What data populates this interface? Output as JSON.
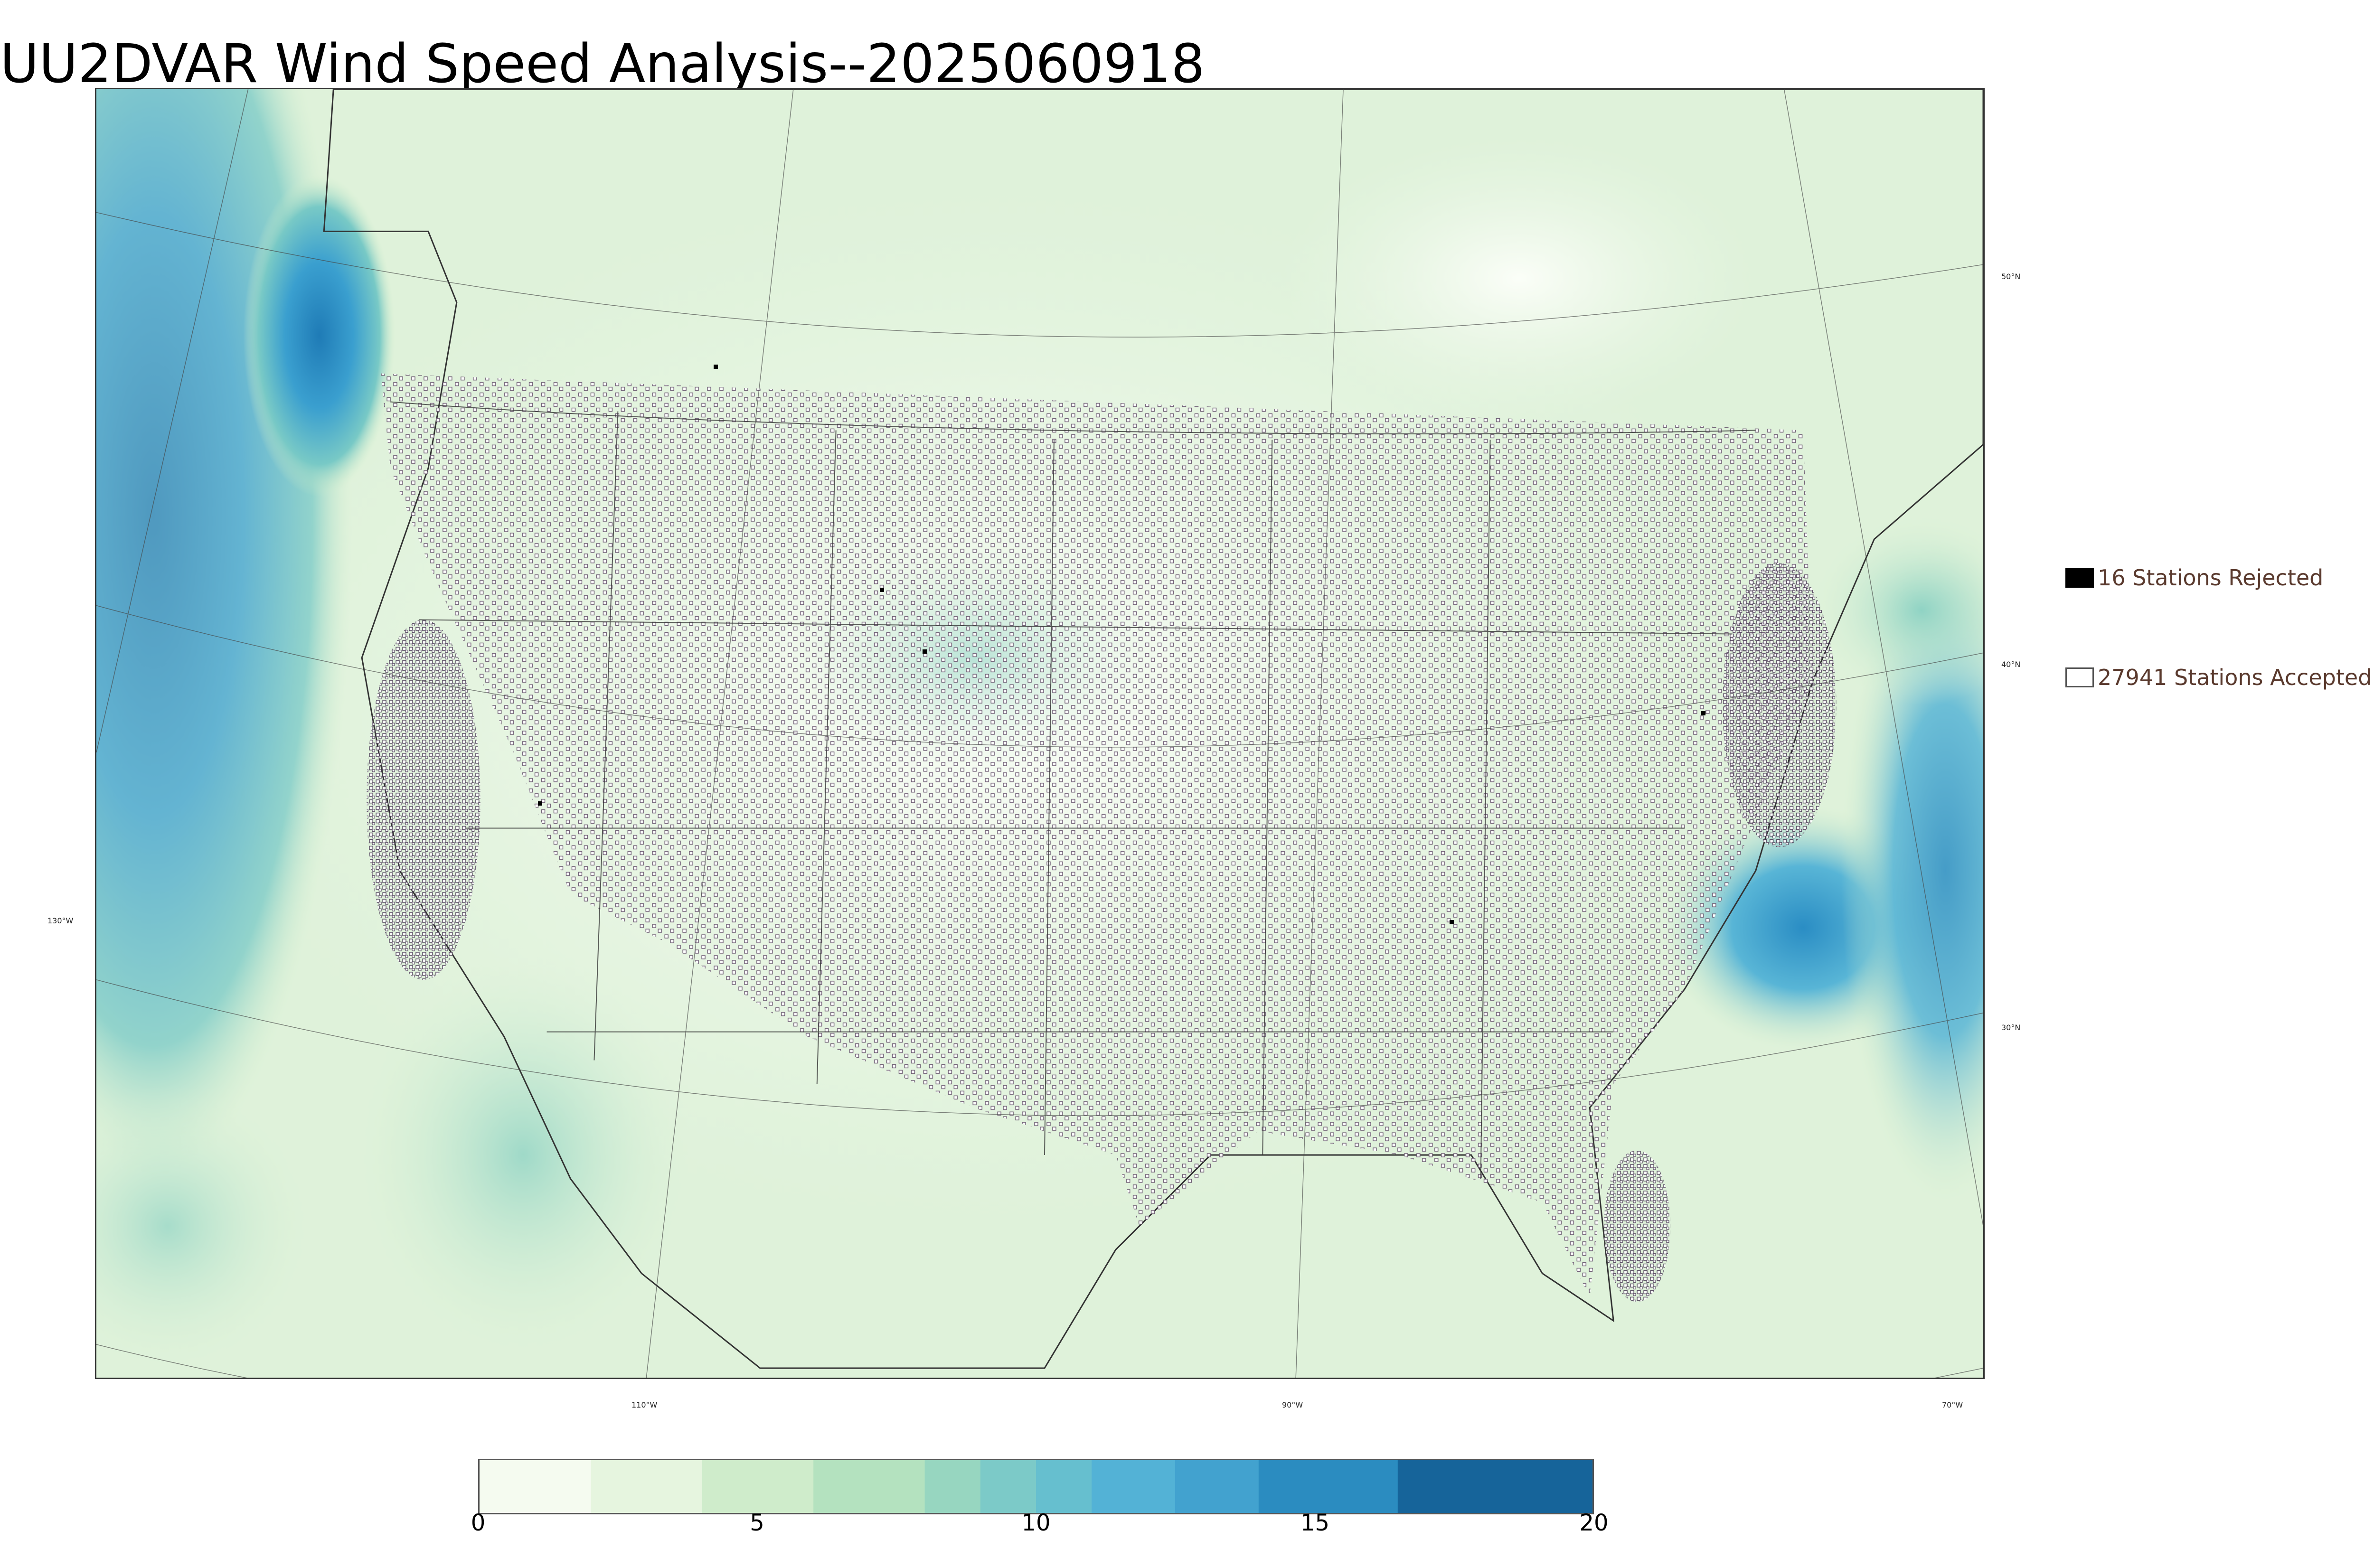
{
  "title": "UU2DVAR Wind Speed Analysis--2025060918",
  "legend": {
    "rejected": {
      "label": "16 Stations Rejected",
      "color": "#000000"
    },
    "accepted": {
      "label": "27941 Stations Accepted",
      "color": "#ffffff"
    }
  },
  "graticule_labels": {
    "lon_130": "130°W",
    "lon_110": "110°W",
    "lon_90": "90°W",
    "lon_70": "70°W",
    "lat_50": "50°N",
    "lat_40": "40°N",
    "lat_30": "30°N"
  },
  "colorbar": {
    "ticks": [
      "0",
      "5",
      "10",
      "15",
      "20"
    ],
    "min": 0,
    "max": 20,
    "bands": [
      {
        "from": 0,
        "to": 2,
        "color": "#f5fbf0"
      },
      {
        "from": 2,
        "to": 4,
        "color": "#e6f5df"
      },
      {
        "from": 4,
        "to": 6,
        "color": "#cfeccb"
      },
      {
        "from": 6,
        "to": 8,
        "color": "#b4e2bf"
      },
      {
        "from": 8,
        "to": 9,
        "color": "#97d6c0"
      },
      {
        "from": 9,
        "to": 10,
        "color": "#7ccac8"
      },
      {
        "from": 10,
        "to": 11,
        "color": "#66bfcf"
      },
      {
        "from": 11,
        "to": 12.5,
        "color": "#53b2d6"
      },
      {
        "from": 12.5,
        "to": 14,
        "color": "#42a2cf"
      },
      {
        "from": 14,
        "to": 16.5,
        "color": "#2b8cc0"
      },
      {
        "from": 16.5,
        "to": 20,
        "color": "#16649a"
      }
    ]
  }
}
